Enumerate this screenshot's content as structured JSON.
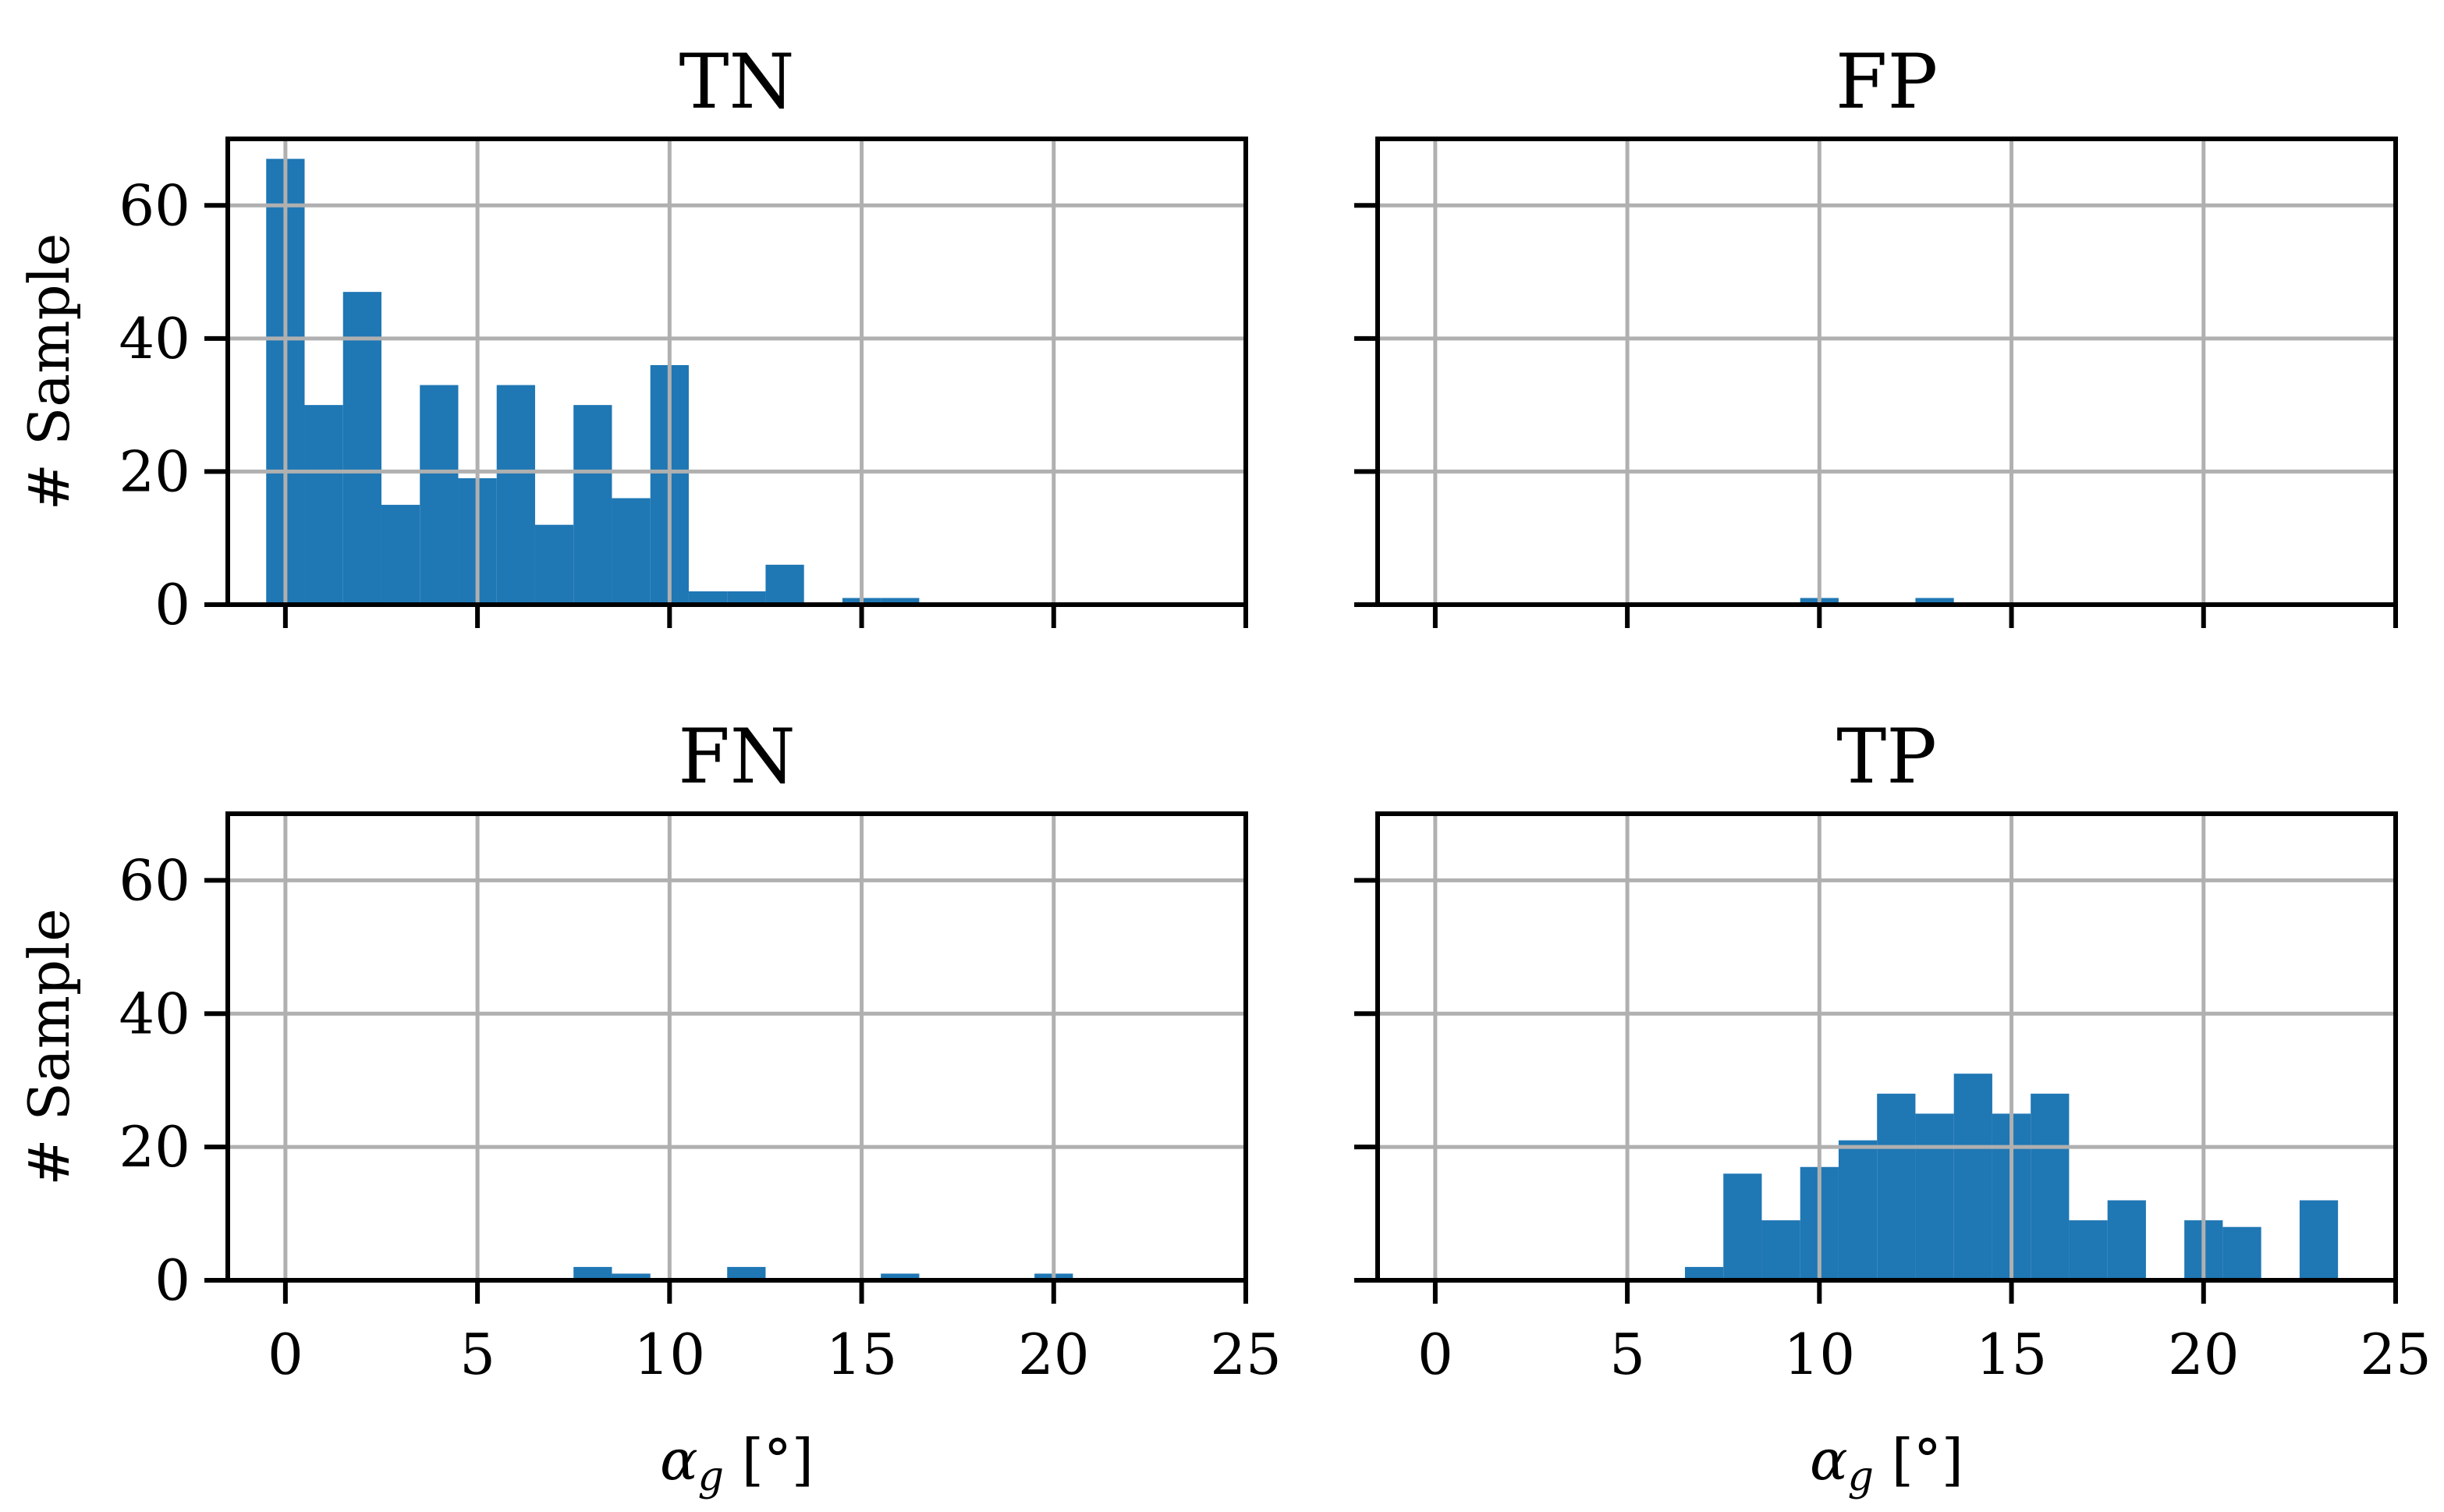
{
  "figure": {
    "bar_color": "#1f77b4",
    "grid_color": "#b0b0b0"
  },
  "chart_data": [
    {
      "type": "bar",
      "title": "TN",
      "xlabel": "",
      "ylabel": "# Sample",
      "xlim": [
        -1.5,
        25
      ],
      "ylim": [
        0,
        70
      ],
      "xticks": [
        "0",
        "5",
        "10",
        "15",
        "20",
        "25"
      ],
      "yticks": [
        "0",
        "20",
        "40",
        "60"
      ],
      "grid": true,
      "bin_width": 1,
      "bins_start": [
        -0.5,
        0.5,
        1.5,
        2.5,
        3.5,
        4.5,
        5.5,
        6.5,
        7.5,
        8.5,
        9.5,
        10.5,
        11.5,
        12.5,
        13.5,
        14.5,
        15.5
      ],
      "values": [
        67,
        30,
        47,
        15,
        33,
        19,
        33,
        12,
        30,
        16,
        36,
        2,
        2,
        6,
        0,
        1,
        1
      ]
    },
    {
      "type": "bar",
      "title": "FP",
      "xlabel": "",
      "ylabel": "",
      "xlim": [
        -1.5,
        25
      ],
      "ylim": [
        0,
        70
      ],
      "xticks": [
        "0",
        "5",
        "10",
        "15",
        "20",
        "25"
      ],
      "yticks": [
        "0",
        "20",
        "40",
        "60"
      ],
      "grid": true,
      "bin_width": 1,
      "bins_start": [
        9.5,
        12.5
      ],
      "values": [
        1,
        1
      ]
    },
    {
      "type": "bar",
      "title": "FN",
      "xlabel": "αg [°]",
      "ylabel": "# Sample",
      "xlim": [
        -1.5,
        25
      ],
      "ylim": [
        0,
        70
      ],
      "xticks": [
        "0",
        "5",
        "10",
        "15",
        "20",
        "25"
      ],
      "yticks": [
        "0",
        "20",
        "40",
        "60"
      ],
      "grid": true,
      "bin_width": 1,
      "bins_start": [
        7.5,
        8.5,
        11.5,
        15.5,
        19.5
      ],
      "values": [
        2,
        1,
        2,
        1,
        1
      ]
    },
    {
      "type": "bar",
      "title": "TP",
      "xlabel": "αg [°]",
      "ylabel": "",
      "xlim": [
        -1.5,
        25
      ],
      "ylim": [
        0,
        70
      ],
      "xticks": [
        "0",
        "5",
        "10",
        "15",
        "20",
        "25"
      ],
      "yticks": [
        "0",
        "20",
        "40",
        "60"
      ],
      "grid": true,
      "bin_width": 1,
      "bins_start": [
        6.5,
        7.5,
        8.5,
        9.5,
        10.5,
        11.5,
        12.5,
        13.5,
        14.5,
        15.5,
        16.5,
        17.5,
        18.5,
        19.5,
        20.5,
        21.5,
        22.5
      ],
      "values": [
        2,
        16,
        9,
        17,
        21,
        28,
        25,
        31,
        25,
        28,
        9,
        12,
        0,
        9,
        8,
        0,
        12
      ]
    }
  ]
}
